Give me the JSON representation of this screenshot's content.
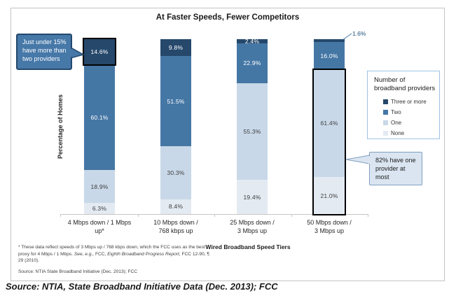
{
  "caption": "Source: NTIA, State Broadband Initiative Data (Dec. 2013); FCC",
  "chart_data": {
    "type": "bar",
    "stacked": true,
    "title": "At Faster Speeds, Fewer Competitors",
    "xlabel": "Wired Broadband Speed Tiers",
    "ylabel": "Percentage of Homes",
    "ylim": [
      0,
      100
    ],
    "grid": false,
    "categories": [
      "4 Mbps down / 1 Mbps up*",
      "10 Mbps down / 768 kbps up",
      "25 Mbps down / 3 Mbps up",
      "50 Mbps down / 3 Mbps up"
    ],
    "category_lines": [
      [
        "4 Mbps down / 1 Mbps",
        "up*"
      ],
      [
        "10 Mbps down /",
        "768 kbps up"
      ],
      [
        "25 Mbps down /",
        "3 Mbps up"
      ],
      [
        "50 Mbps down /",
        "3 Mbps up"
      ]
    ],
    "series": [
      {
        "name": "None",
        "values": [
          6.3,
          8.4,
          19.4,
          21.0
        ],
        "color": "#e3eaf2",
        "label_color": "#404040"
      },
      {
        "name": "One",
        "values": [
          18.9,
          30.3,
          55.3,
          61.4
        ],
        "color": "#c8d8e8",
        "label_color": "#404040"
      },
      {
        "name": "Two",
        "values": [
          60.1,
          51.5,
          22.9,
          16.0
        ],
        "color": "#4577a5",
        "label_color": "#ffffff"
      },
      {
        "name": "Three or more",
        "values": [
          14.6,
          9.8,
          2.4,
          1.6
        ],
        "color": "#25486b",
        "label_color": "#ffffff"
      }
    ],
    "outside_label": {
      "bar": 3,
      "series": "Three or more",
      "text": "1.6%"
    },
    "highlights": [
      {
        "bar": 0,
        "series": [
          "Three or more"
        ]
      },
      {
        "bar": 3,
        "series": [
          "None",
          "One"
        ]
      }
    ],
    "legend": {
      "title": "Number of broadband providers",
      "entries": [
        "Three or more",
        "Two",
        "One",
        "None"
      ],
      "position": "right"
    }
  },
  "annotations": {
    "callout_left": "Just under 15% have more than two providers",
    "callout_right": "82% have one provider at most"
  },
  "footnote": {
    "part1": "* These data reflect speeds of 3 Mbps up / 768 kbps down, which the FCC uses as the best proxy for 4 Mbps / 1 Mbps.  ",
    "part2_italic": "See, e.g.,",
    "part3": " FCC, ",
    "part4_italic": "Eighth Broadband Progress Report,",
    "part5": " FCC 12-90, ¶ 29 (2010).",
    "source_line": "Source:  NTIA State Broadband Initiative (Dec. 2013); FCC"
  },
  "colors": {
    "three_or_more": "#25486b",
    "two": "#4577a5",
    "one": "#c8d8e8",
    "none": "#e3eaf2",
    "highlight_outline": "#000000",
    "axis_line": "#c6c6c6",
    "figure_border": "#c3c3c3",
    "legend_border": "#9dc3e6",
    "callout_left_fill": "#4678a8",
    "callout_left_border": "#24496e",
    "callout_right_fill": "#dae5f1",
    "callout_right_border": "#7f9fbf",
    "outside_label_text": "#1f4e79"
  }
}
